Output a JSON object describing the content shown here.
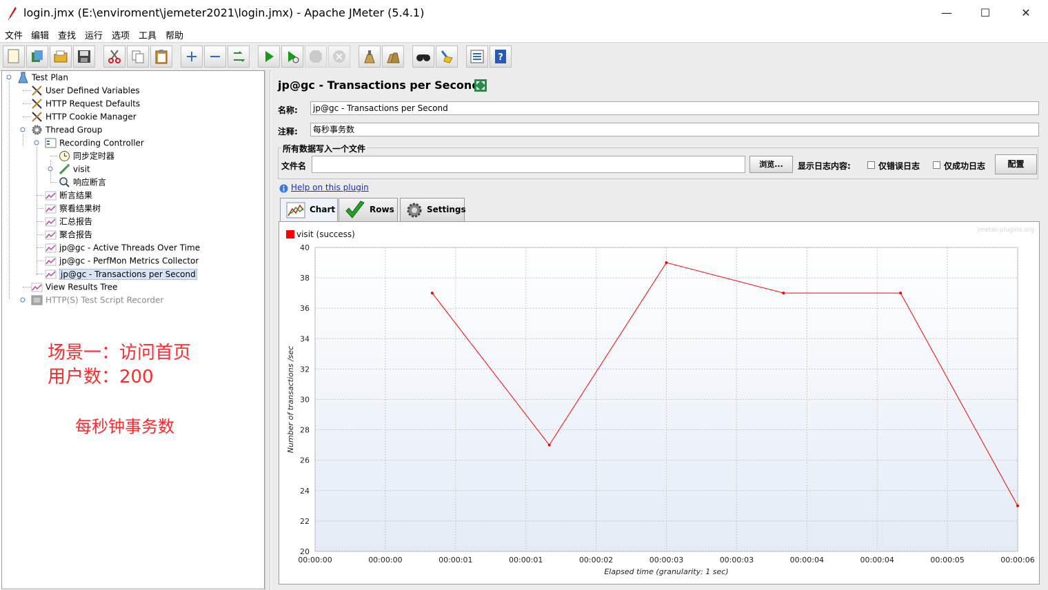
{
  "window": {
    "title": "login.jmx (E:\\enviroment\\jemeter2021\\login.jmx) - Apache JMeter (5.4.1)",
    "minimize": "—",
    "maximize": "☐",
    "close": "✕"
  },
  "menu": [
    "文件",
    "编辑",
    "查找",
    "运行",
    "选项",
    "工具",
    "帮助"
  ],
  "toolbar": [
    "new-icon",
    "templates-icon",
    "open-icon",
    "save-icon",
    "cut-icon",
    "copy-icon",
    "paste-icon",
    "expand-icon",
    "collapse-icon",
    "toggle-icon",
    "start-icon",
    "start-no-pause-icon",
    "stop-icon",
    "shutdown-icon",
    "clear-icon",
    "clear-all-icon",
    "search-icon",
    "reset-search-icon",
    "function-helper-icon",
    "help-icon"
  ],
  "tree": [
    {
      "label": "Test Plan",
      "icon": "test-plan-icon"
    },
    {
      "label": "User Defined Variables",
      "icon": "config-icon"
    },
    {
      "label": "HTTP Request Defaults",
      "icon": "config-icon"
    },
    {
      "label": "HTTP Cookie Manager",
      "icon": "config-icon"
    },
    {
      "label": "Thread Group",
      "icon": "thread-group-icon"
    },
    {
      "label": "Recording Controller",
      "icon": "controller-icon"
    },
    {
      "label": "同步定时器",
      "icon": "timer-icon"
    },
    {
      "label": "visit",
      "icon": "sampler-icon"
    },
    {
      "label": "响应断言",
      "icon": "assertion-icon"
    },
    {
      "label": "断言结果",
      "icon": "listener-icon"
    },
    {
      "label": "察看结果树",
      "icon": "listener-icon"
    },
    {
      "label": "汇总报告",
      "icon": "listener-icon"
    },
    {
      "label": "聚合报告",
      "icon": "listener-icon"
    },
    {
      "label": "jp@gc - Active Threads Over Time",
      "icon": "listener-icon"
    },
    {
      "label": "jp@gc - PerfMon Metrics Collector",
      "icon": "listener-icon"
    },
    {
      "label": "jp@gc - Transactions per Second",
      "icon": "listener-icon"
    },
    {
      "label": "View Results Tree",
      "icon": "listener-icon"
    },
    {
      "label": "HTTP(S) Test Script Recorder",
      "icon": "recorder-icon"
    }
  ],
  "annotations": {
    "line1": "场景一：访问首页",
    "line2": "用户数：200",
    "line3": "每秒钟事务数"
  },
  "panel": {
    "heading": "jp@gc - Transactions per Second",
    "name_label": "名称:",
    "name_value": "jp@gc - Transactions per Second",
    "comment_label": "注释:",
    "comment_value": "每秒事务数",
    "file_section": "所有数据写入一个文件",
    "filename_label": "文件名",
    "filename_value": "",
    "browse": "浏览...",
    "log_label": "显示日志内容:",
    "errors_only": "仅错误日志",
    "success_only": "仅成功日志",
    "configure": "配置",
    "help_link": "Help on this plugin",
    "tabs": [
      "Chart",
      "Rows",
      "Settings"
    ]
  },
  "chart_data": {
    "type": "line",
    "watermark": "jmeter-plugins.org",
    "ylabel": "Number of transactions /sec",
    "xlabel": "Elapsed time (granularity: 1 sec)",
    "ylim": [
      20,
      40
    ],
    "y_ticks": [
      "40",
      "38",
      "36",
      "34",
      "32",
      "30",
      "28",
      "26",
      "24",
      "22",
      "20"
    ],
    "x_ticks": [
      "00:00:00",
      "00:00:00",
      "00:00:01",
      "00:00:01",
      "00:00:02",
      "00:00:03",
      "00:00:03",
      "00:00:04",
      "00:00:04",
      "00:00:05",
      "00:00:06"
    ],
    "xlim_sec": [
      0,
      6
    ],
    "series": [
      {
        "name": "visit (success)",
        "color": "#ff0000",
        "x_sec": [
          1,
          2,
          3,
          4,
          5,
          6
        ],
        "values": [
          37,
          27,
          39,
          37,
          37,
          23
        ]
      }
    ]
  }
}
